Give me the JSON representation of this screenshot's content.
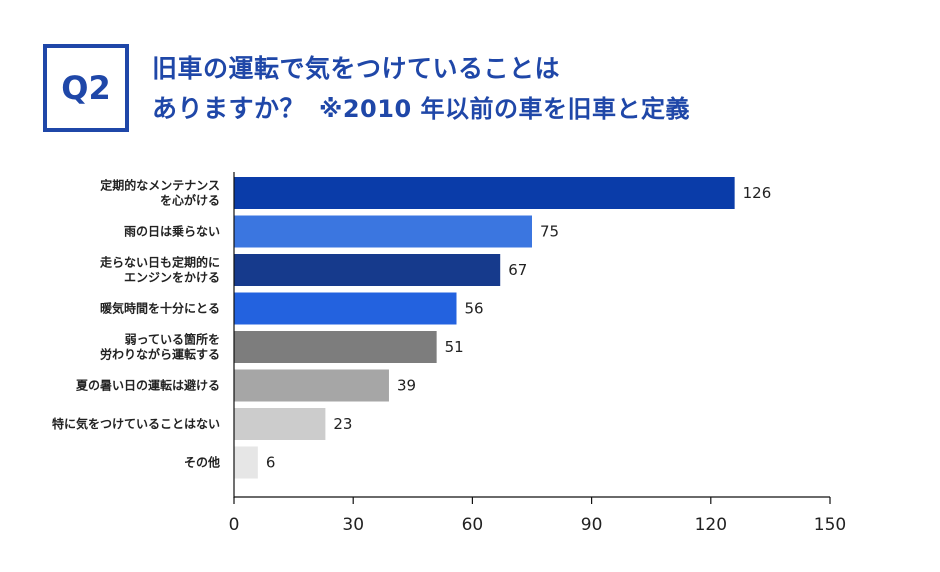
{
  "header": {
    "badge": "Q2",
    "title_line1": "旧車の運転で気をつけていることは",
    "title_line2": "ありますか？",
    "note": "※2010 年以前の車を旧車と定義"
  },
  "chart_data": {
    "type": "bar",
    "orientation": "horizontal",
    "categories": [
      [
        "定期的なメンテナンス",
        "を心がける"
      ],
      [
        "雨の日は乗らない"
      ],
      [
        "走らない日も定期的に",
        "エンジンをかける"
      ],
      [
        "暖気時間を十分にとる"
      ],
      [
        "弱っている箇所を",
        "労わりながら運転する"
      ],
      [
        "夏の暑い日の運転は避ける"
      ],
      [
        "特に気をつけていることはない"
      ],
      [
        "その他"
      ]
    ],
    "values": [
      126,
      75,
      67,
      56,
      51,
      39,
      23,
      6
    ],
    "colors": [
      "#0a3ca9",
      "#3b76e0",
      "#163a8c",
      "#2362df",
      "#7d7d7d",
      "#a6a6a6",
      "#cccccc",
      "#e6e6e6"
    ],
    "xlim": [
      0,
      150
    ],
    "xticks": [
      "0",
      "30",
      "60",
      "90",
      "120",
      "150"
    ],
    "xlabel": "",
    "ylabel": ""
  }
}
